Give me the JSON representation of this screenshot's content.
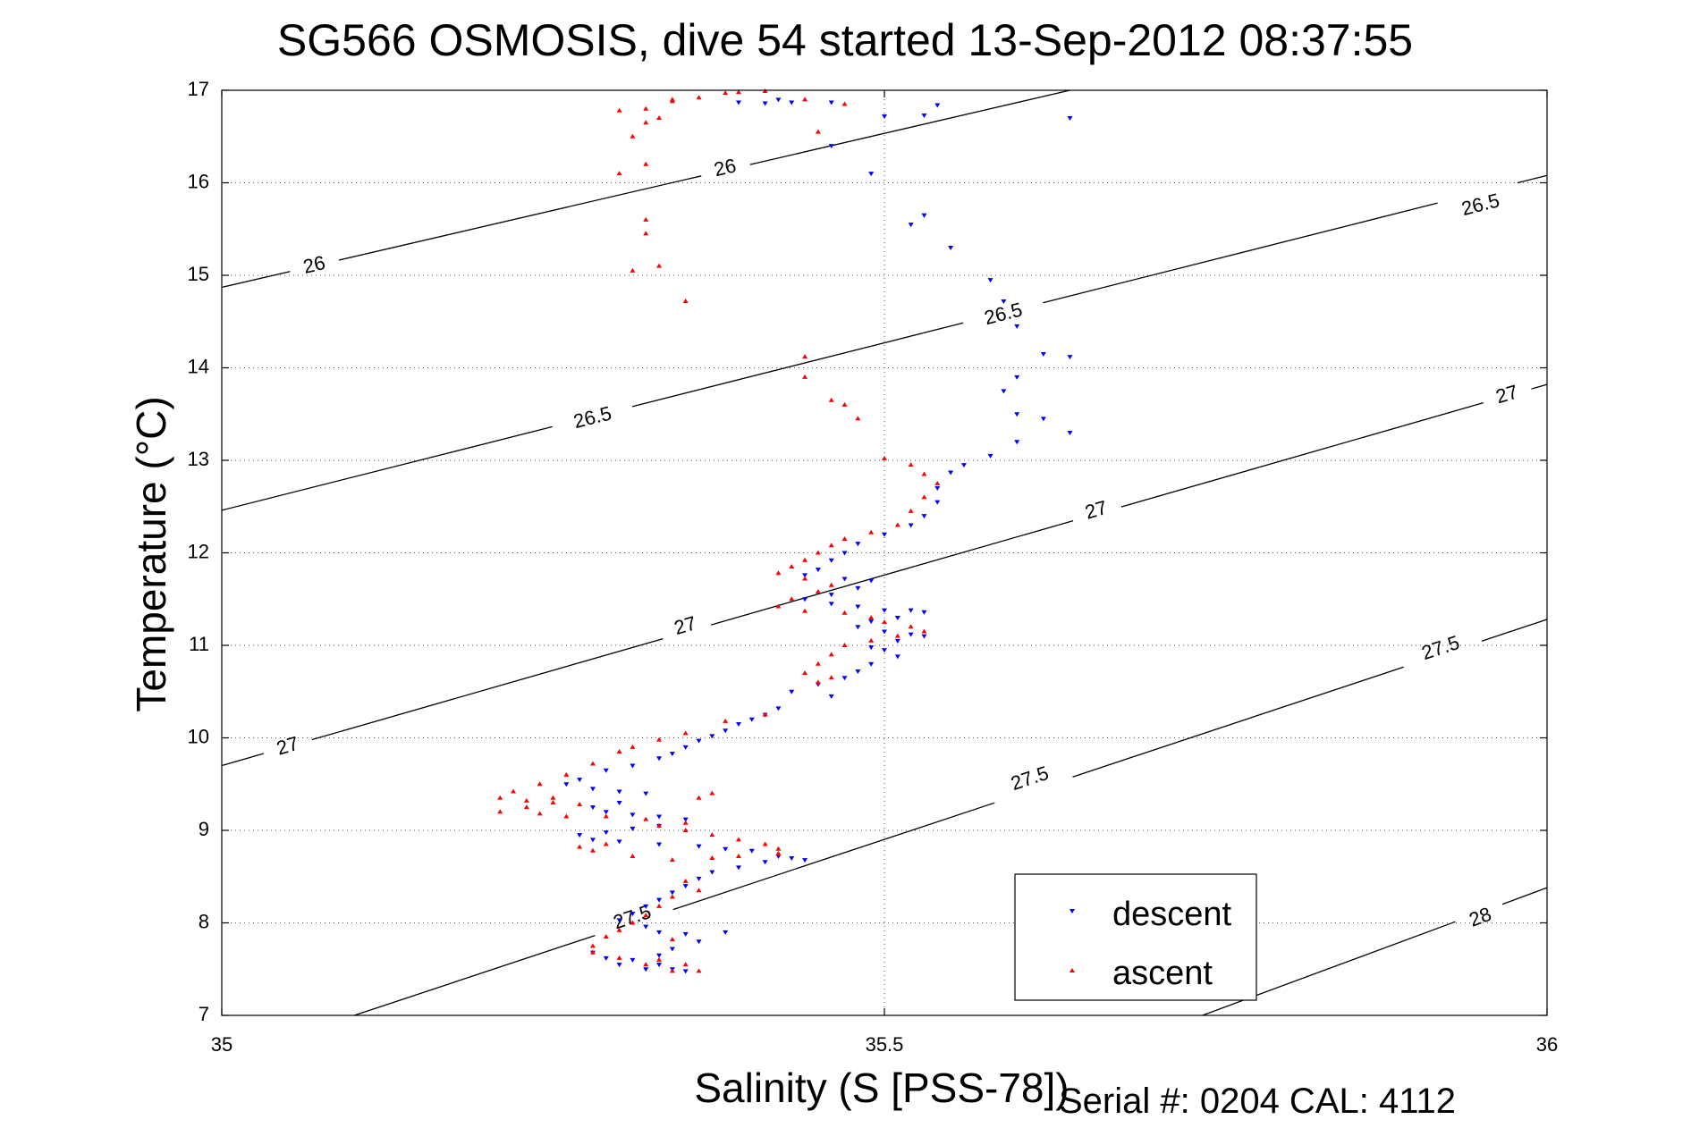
{
  "chart_data": {
    "type": "scatter",
    "title": "SG566 OSMOSIS, dive 54 started 13-Sep-2012 08:37:55",
    "xlabel": "Salinity (S [PSS-78])",
    "ylabel": "Temperature (°C)",
    "footer": "Serial #: 0204  CAL: 4112",
    "xlim": [
      35,
      36
    ],
    "ylim": [
      7,
      17
    ],
    "x_ticks": [
      35,
      35.5,
      36
    ],
    "x_tick_labels": [
      "35",
      "35.5",
      "36"
    ],
    "y_ticks": [
      7,
      8,
      9,
      10,
      11,
      12,
      13,
      14,
      15,
      16,
      17
    ],
    "y_tick_labels": [
      "7",
      "8",
      "9",
      "10",
      "11",
      "12",
      "13",
      "14",
      "15",
      "16",
      "17"
    ],
    "grid": true,
    "legend_position": "bottom-right",
    "contours": [
      {
        "label": "26",
        "points": [
          [
            35.0,
            14.87
          ],
          [
            35.64,
            17.0
          ]
        ],
        "label_positions": [
          [
            35.07,
            15.1
          ],
          [
            35.38,
            16.15
          ]
        ]
      },
      {
        "label": "26.5",
        "points": [
          [
            35.0,
            12.46
          ],
          [
            36.0,
            16.08
          ]
        ],
        "label_positions": [
          [
            35.28,
            13.45
          ],
          [
            35.59,
            14.57
          ],
          [
            35.95,
            15.75
          ]
        ]
      },
      {
        "label": "27",
        "points": [
          [
            35.0,
            9.7
          ],
          [
            36.0,
            13.82
          ]
        ],
        "label_positions": [
          [
            35.05,
            9.9
          ],
          [
            35.35,
            11.2
          ],
          [
            35.66,
            12.45
          ],
          [
            35.97,
            13.7
          ]
        ]
      },
      {
        "label": "27.5",
        "points": [
          [
            35.1,
            7.0
          ],
          [
            36.0,
            11.28
          ]
        ],
        "label_positions": [
          [
            35.31,
            8.05
          ],
          [
            35.61,
            9.55
          ],
          [
            35.92,
            10.96
          ]
        ]
      },
      {
        "label": "28",
        "points": [
          [
            35.74,
            7.0
          ],
          [
            36.0,
            8.38
          ]
        ],
        "label_positions": [
          [
            35.95,
            8.05
          ]
        ]
      }
    ],
    "series": [
      {
        "name": "descent",
        "color": "#0000ff",
        "marker": "triangle-down",
        "points": [
          [
            35.39,
            16.87
          ],
          [
            35.41,
            16.86
          ],
          [
            35.42,
            16.9
          ],
          [
            35.43,
            16.87
          ],
          [
            35.46,
            16.87
          ],
          [
            35.5,
            16.72
          ],
          [
            35.53,
            16.73
          ],
          [
            35.54,
            16.84
          ],
          [
            35.64,
            16.7
          ],
          [
            35.46,
            16.4
          ],
          [
            35.49,
            16.1
          ],
          [
            35.52,
            15.55
          ],
          [
            35.53,
            15.65
          ],
          [
            35.55,
            15.3
          ],
          [
            35.58,
            14.95
          ],
          [
            35.59,
            14.72
          ],
          [
            35.6,
            14.45
          ],
          [
            35.62,
            14.15
          ],
          [
            35.64,
            14.12
          ],
          [
            35.6,
            13.9
          ],
          [
            35.59,
            13.75
          ],
          [
            35.6,
            13.5
          ],
          [
            35.62,
            13.45
          ],
          [
            35.64,
            13.3
          ],
          [
            35.6,
            13.2
          ],
          [
            35.58,
            13.05
          ],
          [
            35.56,
            12.95
          ],
          [
            35.55,
            12.87
          ],
          [
            35.54,
            12.7
          ],
          [
            35.54,
            12.55
          ],
          [
            35.53,
            12.4
          ],
          [
            35.52,
            12.3
          ],
          [
            35.5,
            12.2
          ],
          [
            35.48,
            12.1
          ],
          [
            35.47,
            12.0
          ],
          [
            35.46,
            11.92
          ],
          [
            35.45,
            11.82
          ],
          [
            35.44,
            11.76
          ],
          [
            35.47,
            11.72
          ],
          [
            35.49,
            11.7
          ],
          [
            35.48,
            11.62
          ],
          [
            35.46,
            11.55
          ],
          [
            35.44,
            11.5
          ],
          [
            35.46,
            11.45
          ],
          [
            35.48,
            11.42
          ],
          [
            35.5,
            11.38
          ],
          [
            35.52,
            11.38
          ],
          [
            35.53,
            11.36
          ],
          [
            35.51,
            11.3
          ],
          [
            35.49,
            11.26
          ],
          [
            35.48,
            11.2
          ],
          [
            35.5,
            11.15
          ],
          [
            35.52,
            11.12
          ],
          [
            35.53,
            11.1
          ],
          [
            35.51,
            11.05
          ],
          [
            35.49,
            10.98
          ],
          [
            35.5,
            10.95
          ],
          [
            35.51,
            10.88
          ],
          [
            35.49,
            10.8
          ],
          [
            35.48,
            10.72
          ],
          [
            35.47,
            10.65
          ],
          [
            35.45,
            10.58
          ],
          [
            35.43,
            10.5
          ],
          [
            35.46,
            10.45
          ],
          [
            35.42,
            10.32
          ],
          [
            35.41,
            10.25
          ],
          [
            35.4,
            10.2
          ],
          [
            35.39,
            10.15
          ],
          [
            35.38,
            10.08
          ],
          [
            35.37,
            10.02
          ],
          [
            35.36,
            9.97
          ],
          [
            35.35,
            9.9
          ],
          [
            35.34,
            9.83
          ],
          [
            35.33,
            9.78
          ],
          [
            35.31,
            9.7
          ],
          [
            35.29,
            9.65
          ],
          [
            35.27,
            9.55
          ],
          [
            35.26,
            9.5
          ],
          [
            35.28,
            9.45
          ],
          [
            35.3,
            9.42
          ],
          [
            35.32,
            9.4
          ],
          [
            35.3,
            9.3
          ],
          [
            35.28,
            9.25
          ],
          [
            35.29,
            9.2
          ],
          [
            35.31,
            9.17
          ],
          [
            35.33,
            9.15
          ],
          [
            35.35,
            9.12
          ],
          [
            35.33,
            9.05
          ],
          [
            35.31,
            9.02
          ],
          [
            35.29,
            8.98
          ],
          [
            35.27,
            8.95
          ],
          [
            35.28,
            8.9
          ],
          [
            35.3,
            8.88
          ],
          [
            35.33,
            8.85
          ],
          [
            35.36,
            8.83
          ],
          [
            35.38,
            8.8
          ],
          [
            35.4,
            8.78
          ],
          [
            35.42,
            8.72
          ],
          [
            35.41,
            8.66
          ],
          [
            35.39,
            8.6
          ],
          [
            35.37,
            8.55
          ],
          [
            35.36,
            8.48
          ],
          [
            35.35,
            8.4
          ],
          [
            35.34,
            8.33
          ],
          [
            35.33,
            8.25
          ],
          [
            35.32,
            8.18
          ],
          [
            35.31,
            8.1
          ],
          [
            35.3,
            8.03
          ],
          [
            35.32,
            7.96
          ],
          [
            35.33,
            7.9
          ],
          [
            35.35,
            7.88
          ],
          [
            35.38,
            7.9
          ],
          [
            35.36,
            7.8
          ],
          [
            35.34,
            7.72
          ],
          [
            35.33,
            7.65
          ],
          [
            35.31,
            7.6
          ],
          [
            35.33,
            7.55
          ],
          [
            35.34,
            7.5
          ],
          [
            35.35,
            7.48
          ],
          [
            35.32,
            7.5
          ],
          [
            35.3,
            7.55
          ],
          [
            35.29,
            7.62
          ],
          [
            35.28,
            7.68
          ],
          [
            35.43,
            8.7
          ],
          [
            35.44,
            8.68
          ]
        ]
      },
      {
        "name": "ascent",
        "color": "#ff0000",
        "marker": "triangle-up",
        "points": [
          [
            35.32,
            16.8
          ],
          [
            35.34,
            16.9
          ],
          [
            35.36,
            16.92
          ],
          [
            35.38,
            16.97
          ],
          [
            35.39,
            16.98
          ],
          [
            35.41,
            16.99
          ],
          [
            35.44,
            16.9
          ],
          [
            35.47,
            16.85
          ],
          [
            35.45,
            16.55
          ],
          [
            35.32,
            16.65
          ],
          [
            35.33,
            16.7
          ],
          [
            35.34,
            16.88
          ],
          [
            35.3,
            16.78
          ],
          [
            35.31,
            16.5
          ],
          [
            35.32,
            16.2
          ],
          [
            35.32,
            15.6
          ],
          [
            35.32,
            15.45
          ],
          [
            35.33,
            15.1
          ],
          [
            35.35,
            14.72
          ],
          [
            35.3,
            16.1
          ],
          [
            35.31,
            15.05
          ],
          [
            35.44,
            14.12
          ],
          [
            35.44,
            13.9
          ],
          [
            35.46,
            13.65
          ],
          [
            35.48,
            13.45
          ],
          [
            35.47,
            13.6
          ],
          [
            35.5,
            13.02
          ],
          [
            35.52,
            12.95
          ],
          [
            35.53,
            12.85
          ],
          [
            35.54,
            12.75
          ],
          [
            35.53,
            12.6
          ],
          [
            35.52,
            12.45
          ],
          [
            35.51,
            12.3
          ],
          [
            35.49,
            12.22
          ],
          [
            35.47,
            12.15
          ],
          [
            35.46,
            12.08
          ],
          [
            35.45,
            12.0
          ],
          [
            35.44,
            11.92
          ],
          [
            35.43,
            11.85
          ],
          [
            35.42,
            11.78
          ],
          [
            35.44,
            11.72
          ],
          [
            35.46,
            11.65
          ],
          [
            35.45,
            11.58
          ],
          [
            35.43,
            11.5
          ],
          [
            35.42,
            11.42
          ],
          [
            35.44,
            11.37
          ],
          [
            35.47,
            11.35
          ],
          [
            35.49,
            11.3
          ],
          [
            35.5,
            11.25
          ],
          [
            35.52,
            11.2
          ],
          [
            35.53,
            11.15
          ],
          [
            35.51,
            11.1
          ],
          [
            35.49,
            11.05
          ],
          [
            35.47,
            11.0
          ],
          [
            35.46,
            10.9
          ],
          [
            35.45,
            10.8
          ],
          [
            35.44,
            10.7
          ],
          [
            35.46,
            10.65
          ],
          [
            35.45,
            10.6
          ],
          [
            35.41,
            10.25
          ],
          [
            35.38,
            10.18
          ],
          [
            35.35,
            10.05
          ],
          [
            35.33,
            9.98
          ],
          [
            35.31,
            9.9
          ],
          [
            35.3,
            9.85
          ],
          [
            35.28,
            9.72
          ],
          [
            35.26,
            9.6
          ],
          [
            35.24,
            9.5
          ],
          [
            35.22,
            9.42
          ],
          [
            35.21,
            9.35
          ],
          [
            35.23,
            9.32
          ],
          [
            35.25,
            9.3
          ],
          [
            35.23,
            9.25
          ],
          [
            35.21,
            9.2
          ],
          [
            35.24,
            9.18
          ],
          [
            35.26,
            9.15
          ],
          [
            35.29,
            9.15
          ],
          [
            35.32,
            9.12
          ],
          [
            35.35,
            9.08
          ],
          [
            35.33,
            9.05
          ],
          [
            35.35,
            9.0
          ],
          [
            35.37,
            8.95
          ],
          [
            35.39,
            8.9
          ],
          [
            35.41,
            8.85
          ],
          [
            35.42,
            8.8
          ],
          [
            35.42,
            8.75
          ],
          [
            35.39,
            8.72
          ],
          [
            35.37,
            8.7
          ],
          [
            35.34,
            8.68
          ],
          [
            35.31,
            8.72
          ],
          [
            35.28,
            8.78
          ],
          [
            35.27,
            8.82
          ],
          [
            35.29,
            8.85
          ],
          [
            35.36,
            9.35
          ],
          [
            35.37,
            9.4
          ],
          [
            35.35,
            8.45
          ],
          [
            35.36,
            8.35
          ],
          [
            35.34,
            8.28
          ],
          [
            35.33,
            8.18
          ],
          [
            35.32,
            8.08
          ],
          [
            35.31,
            8.0
          ],
          [
            35.3,
            7.92
          ],
          [
            35.29,
            7.85
          ],
          [
            35.28,
            7.75
          ],
          [
            35.28,
            7.68
          ],
          [
            35.3,
            7.62
          ],
          [
            35.32,
            7.55
          ],
          [
            35.34,
            7.48
          ],
          [
            35.36,
            7.48
          ],
          [
            35.35,
            7.55
          ],
          [
            35.33,
            7.6
          ],
          [
            35.34,
            7.82
          ],
          [
            35.25,
            9.35
          ],
          [
            35.27,
            9.28
          ]
        ]
      }
    ]
  }
}
